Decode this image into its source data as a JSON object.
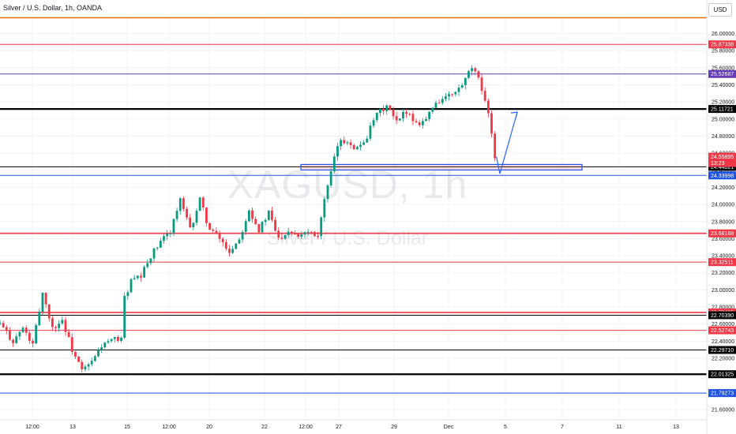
{
  "header": {
    "title": "Silver / U.S. Dollar, 1h, OANDA"
  },
  "currency_button": "USD",
  "watermark": {
    "symbol": "XAGUSD, 1h",
    "name": "Silver / U.S. Dollar"
  },
  "chart_data": {
    "type": "candlestick",
    "title": "Silver / U.S. Dollar, 1h, OANDA",
    "ylim": [
      21.5,
      26.2
    ],
    "y_ticks": [
      21.6,
      21.8,
      22.0,
      22.2,
      22.4,
      22.6,
      22.8,
      23.0,
      23.2,
      23.4,
      23.6,
      23.8,
      24.0,
      24.2,
      24.4,
      24.6,
      24.8,
      25.0,
      25.2,
      25.4,
      25.6,
      25.8,
      26.0
    ],
    "y_tick_labels": [
      "21.60000",
      "21.80000",
      "22.00000",
      "22.20000",
      "22.40000",
      "22.60000",
      "22.80000",
      "23.00000",
      "23.20000",
      "23.40000",
      "23.60000",
      "23.80000",
      "24.00000",
      "24.20000",
      "24.40000",
      "24.60000",
      "24.80000",
      "25.00000",
      "25.20000",
      "25.40000",
      "25.60000",
      "25.80000",
      "26.00000"
    ],
    "x_labels": [
      "12:00",
      "13",
      "15",
      "12:00",
      "20",
      "22",
      "12:00",
      "27",
      "29",
      "Dec",
      "5",
      "7",
      "11",
      "13"
    ],
    "price_path": [
      [
        0,
        22.6
      ],
      [
        4,
        22.4
      ],
      [
        7,
        22.55
      ],
      [
        10,
        22.35
      ],
      [
        13,
        22.97
      ],
      [
        16,
        22.55
      ],
      [
        19,
        22.65
      ],
      [
        22,
        22.3
      ],
      [
        25,
        22.05
      ],
      [
        28,
        22.15
      ],
      [
        31,
        22.35
      ],
      [
        34,
        22.4
      ],
      [
        37,
        22.45
      ],
      [
        38,
        22.9
      ],
      [
        40,
        23.1
      ],
      [
        43,
        23.15
      ],
      [
        46,
        23.4
      ],
      [
        49,
        23.55
      ],
      [
        52,
        23.7
      ],
      [
        55,
        24.05
      ],
      [
        58,
        23.7
      ],
      [
        61,
        24.05
      ],
      [
        64,
        23.7
      ],
      [
        67,
        23.6
      ],
      [
        70,
        23.45
      ],
      [
        73,
        23.6
      ],
      [
        76,
        23.95
      ],
      [
        79,
        23.7
      ],
      [
        82,
        23.9
      ],
      [
        85,
        23.6
      ],
      [
        88,
        23.7
      ],
      [
        91,
        23.65
      ],
      [
        94,
        23.7
      ],
      [
        97,
        23.65
      ],
      [
        99,
        24.05
      ],
      [
        101,
        24.35
      ],
      [
        103,
        24.7
      ],
      [
        106,
        24.75
      ],
      [
        109,
        24.65
      ],
      [
        112,
        24.8
      ],
      [
        115,
        25.05
      ],
      [
        118,
        25.15
      ],
      [
        121,
        24.95
      ],
      [
        124,
        25.1
      ],
      [
        127,
        24.95
      ],
      [
        130,
        25.0
      ],
      [
        133,
        25.2
      ],
      [
        136,
        25.25
      ],
      [
        139,
        25.3
      ],
      [
        142,
        25.45
      ],
      [
        144,
        25.6
      ],
      [
        146,
        25.45
      ],
      [
        148,
        25.25
      ],
      [
        150,
        24.85
      ],
      [
        151,
        24.56
      ]
    ],
    "horizontal_levels": [
      {
        "price": 26.2,
        "color": "#ef6c00",
        "label": null
      },
      {
        "price": 25.87338,
        "color": "#f23645",
        "label": "25.87338"
      },
      {
        "price": 25.52687,
        "color": "#673ab7",
        "label": "25.52687"
      },
      {
        "price": 25.11721,
        "color": "#000000",
        "label": "25.11721"
      },
      {
        "price": 24.44021,
        "color": "#000000",
        "label": "24.44021"
      },
      {
        "price": 24.33998,
        "color": "#1e53e5",
        "label": "24.33998"
      },
      {
        "price": 23.66168,
        "color": "#f23645",
        "label": "23.66168"
      },
      {
        "price": 23.32511,
        "color": "#f23645",
        "label": "23.32511"
      },
      {
        "price": 22.73635,
        "color": "#f23645",
        "label": "22.73635"
      },
      {
        "price": 22.7039,
        "color": "#000000",
        "label": "22.70390"
      },
      {
        "price": 22.52743,
        "color": "#f23645",
        "label": "22.52743"
      },
      {
        "price": 22.2971,
        "color": "#000000",
        "label": "22.29710"
      },
      {
        "price": 22.01325,
        "color": "#000000",
        "label": "22.01325"
      },
      {
        "price": 21.79273,
        "color": "#1e53e5",
        "label": "21.79273"
      }
    ],
    "last_price": {
      "price": 24.55895,
      "label": "24.55895",
      "countdown": "13:23",
      "color": "#f23645"
    },
    "zone": {
      "top": 24.44021,
      "bottom": 24.33998,
      "from_index": 94,
      "to_index": 180,
      "color": "#1e53e5"
    },
    "projection_arrow": {
      "start_price": 24.56,
      "low_price": 24.36,
      "end_price": 25.08
    }
  }
}
